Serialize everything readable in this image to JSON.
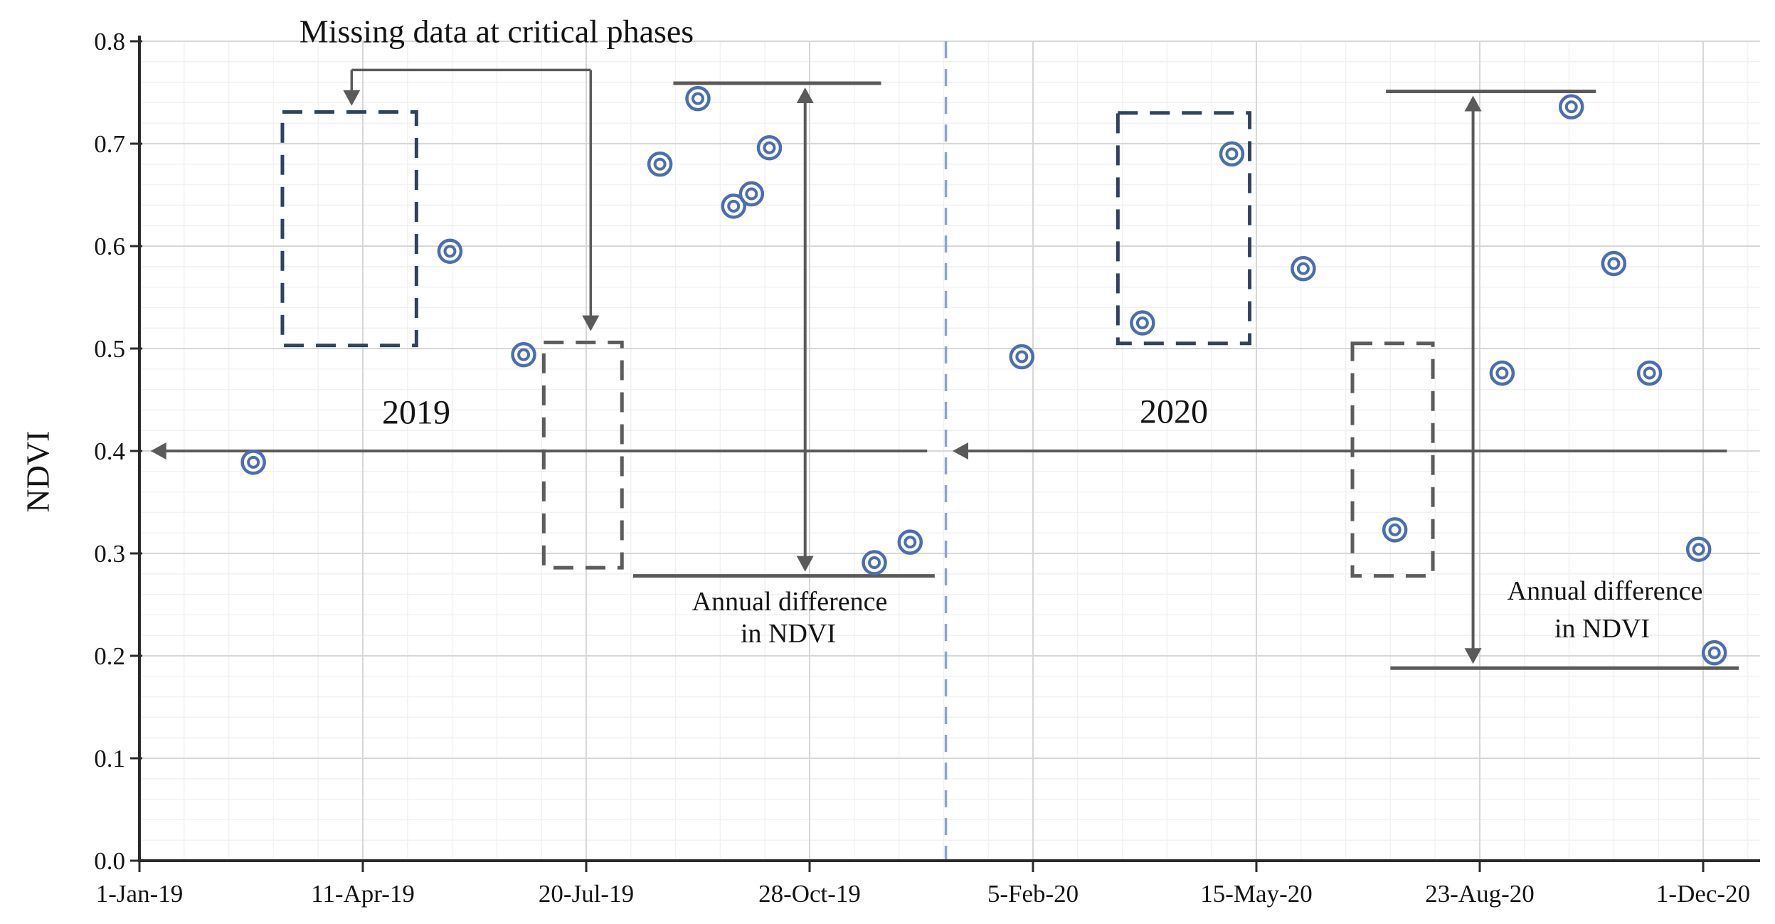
{
  "chart_data": {
    "type": "scatter",
    "title_annotation": "Missing data at critical phases",
    "ylabel": "NDVI",
    "xlabel": "",
    "ylim": [
      0.0,
      0.8
    ],
    "ytick_step": 0.1,
    "ytick_labels": [
      "0.0",
      "0.1",
      "0.2",
      "0.3",
      "0.4",
      "0.5",
      "0.6",
      "0.7",
      "0.8"
    ],
    "xticks": [
      {
        "day": 0,
        "label": "1-Jan-19"
      },
      {
        "day": 100,
        "label": "11-Apr-19"
      },
      {
        "day": 200,
        "label": "20-Jul-19"
      },
      {
        "day": 300,
        "label": "28-Oct-19"
      },
      {
        "day": 400,
        "label": "5-Feb-20"
      },
      {
        "day": 500,
        "label": "15-May-20"
      },
      {
        "day": 600,
        "label": "23-Aug-20"
      },
      {
        "day": 700,
        "label": "1-Dec-20"
      }
    ],
    "grid": {
      "on": true,
      "minor_day_step": 20,
      "minor_ndvi_step": 0.02
    },
    "legend": "none",
    "series": [
      {
        "name": "NDVI observations",
        "marker": "double-circle",
        "color": "#4a6fae",
        "points": [
          {
            "date": "21-Feb-19",
            "day": 51,
            "ndvi": 0.389
          },
          {
            "date": "20-May-19",
            "day": 139,
            "ndvi": 0.595
          },
          {
            "date": "22-Jun-19",
            "day": 172,
            "ndvi": 0.494
          },
          {
            "date": "22-Aug-19",
            "day": 233,
            "ndvi": 0.68
          },
          {
            "date": "8-Sep-19",
            "day": 250,
            "ndvi": 0.744
          },
          {
            "date": "24-Sep-19",
            "day": 266,
            "ndvi": 0.639
          },
          {
            "date": "2-Oct-19",
            "day": 274,
            "ndvi": 0.651
          },
          {
            "date": "10-Oct-19",
            "day": 282,
            "ndvi": 0.696
          },
          {
            "date": "26-Nov-19",
            "day": 329,
            "ndvi": 0.291
          },
          {
            "date": "12-Dec-19",
            "day": 345,
            "ndvi": 0.311
          },
          {
            "date": "31-Jan-20",
            "day": 395,
            "ndvi": 0.492
          },
          {
            "date": "25-Mar-20",
            "day": 449,
            "ndvi": 0.525
          },
          {
            "date": "4-May-20",
            "day": 489,
            "ndvi": 0.69
          },
          {
            "date": "5-Jun-20",
            "day": 521,
            "ndvi": 0.578
          },
          {
            "date": "16-Jul-20",
            "day": 562,
            "ndvi": 0.323
          },
          {
            "date": "2-Sep-20",
            "day": 610,
            "ndvi": 0.476
          },
          {
            "date": "3-Oct-20",
            "day": 641,
            "ndvi": 0.736
          },
          {
            "date": "22-Oct-20",
            "day": 660,
            "ndvi": 0.583
          },
          {
            "date": "7-Nov-20",
            "day": 676,
            "ndvi": 0.476
          },
          {
            "date": "29-Nov-20",
            "day": 698,
            "ndvi": 0.304
          },
          {
            "date": "6-Dec-20",
            "day": 705,
            "ndvi": 0.203
          }
        ]
      }
    ],
    "annotations": {
      "missing_data_boxes": [
        {
          "id": "box-2019-spring",
          "day_start": 64,
          "day_end": 124,
          "ndvi_low": 0.503,
          "ndvi_high": 0.731,
          "color": "#31415f"
        },
        {
          "id": "box-2019-summer",
          "day_start": 181,
          "day_end": 216,
          "ndvi_low": 0.286,
          "ndvi_high": 0.506,
          "color": "#5c5c5c"
        },
        {
          "id": "box-2020-spring",
          "day_start": 438,
          "day_end": 497,
          "ndvi_low": 0.505,
          "ndvi_high": 0.73,
          "color": "#31415f"
        },
        {
          "id": "box-2020-summer",
          "day_start": 543,
          "day_end": 579,
          "ndvi_low": 0.278,
          "ndvi_high": 0.505,
          "color": "#5c5c5c"
        }
      ],
      "year_divider": {
        "day": 361,
        "color": "#8aa5cd"
      },
      "year_spans": [
        {
          "label": "2019",
          "day_start": 5,
          "day_end": 359,
          "ndvi": 0.4
        },
        {
          "label": "2020",
          "day_start": 364,
          "day_end": 717,
          "ndvi": 0.4
        }
      ],
      "annual_difference": [
        {
          "label_line1": "Annual difference",
          "label_line2": "in NDVI",
          "top_line": {
            "day_start": 239,
            "day_end": 332,
            "ndvi": 0.759
          },
          "bottom_line": {
            "day_start": 221,
            "day_end": 356,
            "ndvi": 0.278
          },
          "arrow_day": 298
        },
        {
          "label_line1": "Annual difference",
          "label_line2": "in NDVI",
          "top_line": {
            "day_start": 558,
            "day_end": 652,
            "ndvi": 0.751
          },
          "bottom_line": {
            "day_start": 560,
            "day_end": 716,
            "ndvi": 0.188
          },
          "arrow_day": 597
        }
      ],
      "title_connector": {
        "bar_ndvi": 0.772,
        "day_start": 95,
        "day_end": 202,
        "left_arrow_tip_ndvi": 0.737,
        "right_arrow_tip_ndvi": 0.517
      }
    },
    "colors": {
      "axis": "#2b2b2b",
      "grid_major": "#d7d7d7",
      "grid_minor": "#f1f1f1",
      "annotation": "#5a5a5a",
      "marker": "#4a6fae",
      "text": "#141414"
    }
  }
}
